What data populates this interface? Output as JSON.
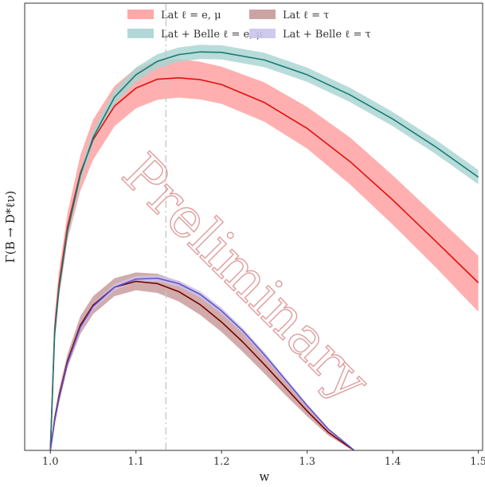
{
  "chart_data": {
    "type": "line",
    "title": "",
    "xlabel": "w",
    "ylabel": "Γ(B → D*ℓν)",
    "xlim": [
      0.97,
      1.505
    ],
    "ylim": [
      0,
      1.0
    ],
    "xticks": [
      1.0,
      1.1,
      1.2,
      1.3,
      1.4,
      1.5
    ],
    "xtick_labels": [
      "1.0",
      "1.1",
      "1.2",
      "1.3",
      "1.4",
      "1.5"
    ],
    "yticks_shown": false,
    "grid": false,
    "legend_position": "top-center",
    "vertical_line": {
      "x": 1.135,
      "style": "dash-dot",
      "color": "#c8c8c8"
    },
    "watermark": "Preliminary",
    "series": [
      {
        "name": "Lat ℓ = e, μ",
        "band_color": "#ff9e9e",
        "line_color": "#e0100c",
        "x": [
          1.0,
          1.005,
          1.01,
          1.02,
          1.035,
          1.05,
          1.075,
          1.1,
          1.125,
          1.15,
          1.175,
          1.2,
          1.25,
          1.3,
          1.35,
          1.4,
          1.45,
          1.5
        ],
        "y": [
          0.0,
          0.27,
          0.37,
          0.5,
          0.62,
          0.695,
          0.77,
          0.81,
          0.83,
          0.833,
          0.829,
          0.818,
          0.778,
          0.72,
          0.646,
          0.56,
          0.468,
          0.375
        ],
        "upper": [
          0.0,
          0.3,
          0.4,
          0.53,
          0.66,
          0.74,
          0.815,
          0.855,
          0.872,
          0.875,
          0.869,
          0.858,
          0.823,
          0.768,
          0.7,
          0.615,
          0.525,
          0.435
        ],
        "lower": [
          0.0,
          0.24,
          0.34,
          0.47,
          0.58,
          0.65,
          0.725,
          0.765,
          0.784,
          0.789,
          0.785,
          0.775,
          0.735,
          0.675,
          0.595,
          0.505,
          0.41,
          0.31
        ]
      },
      {
        "name": "Lat ℓ = τ",
        "band_color": "#c79999",
        "line_color": "#7a0000",
        "x": [
          1.0,
          1.005,
          1.01,
          1.02,
          1.035,
          1.05,
          1.075,
          1.1,
          1.125,
          1.15,
          1.175,
          1.2,
          1.225,
          1.25,
          1.275,
          1.3,
          1.325,
          1.35,
          1.355
        ],
        "y": [
          0.0,
          0.07,
          0.12,
          0.2,
          0.28,
          0.325,
          0.365,
          0.378,
          0.373,
          0.355,
          0.326,
          0.287,
          0.242,
          0.192,
          0.14,
          0.088,
          0.04,
          0.006,
          0.0
        ],
        "upper": [
          0.0,
          0.08,
          0.135,
          0.215,
          0.3,
          0.345,
          0.385,
          0.398,
          0.395,
          0.378,
          0.35,
          0.31,
          0.264,
          0.212,
          0.157,
          0.1,
          0.048,
          0.009,
          0.0
        ],
        "lower": [
          0.0,
          0.06,
          0.105,
          0.185,
          0.26,
          0.305,
          0.345,
          0.358,
          0.352,
          0.333,
          0.303,
          0.265,
          0.22,
          0.172,
          0.123,
          0.076,
          0.033,
          0.004,
          0.0
        ]
      },
      {
        "name": "Lat + Belle ℓ = e, μ",
        "band_color": "#a8d4d1",
        "line_color": "#187a76",
        "x": [
          1.0,
          1.005,
          1.01,
          1.02,
          1.035,
          1.05,
          1.075,
          1.1,
          1.125,
          1.15,
          1.175,
          1.2,
          1.25,
          1.3,
          1.35,
          1.4,
          1.45,
          1.5
        ],
        "y": [
          0.0,
          0.26,
          0.36,
          0.49,
          0.615,
          0.7,
          0.79,
          0.84,
          0.87,
          0.885,
          0.891,
          0.89,
          0.873,
          0.84,
          0.795,
          0.741,
          0.679,
          0.611
        ],
        "upper": [
          0.0,
          0.27,
          0.37,
          0.503,
          0.63,
          0.715,
          0.806,
          0.856,
          0.886,
          0.901,
          0.907,
          0.906,
          0.889,
          0.856,
          0.811,
          0.757,
          0.695,
          0.627
        ],
        "lower": [
          0.0,
          0.25,
          0.35,
          0.477,
          0.6,
          0.685,
          0.774,
          0.824,
          0.854,
          0.869,
          0.875,
          0.874,
          0.857,
          0.824,
          0.779,
          0.725,
          0.663,
          0.595
        ]
      },
      {
        "name": "Lat + Belle ℓ = τ",
        "band_color": "#c9c4ec",
        "line_color": "#6652c9",
        "x": [
          1.0,
          1.005,
          1.01,
          1.02,
          1.035,
          1.05,
          1.075,
          1.1,
          1.125,
          1.15,
          1.175,
          1.2,
          1.225,
          1.25,
          1.275,
          1.3,
          1.325,
          1.35,
          1.355
        ],
        "y": [
          0.0,
          0.065,
          0.115,
          0.195,
          0.275,
          0.322,
          0.365,
          0.383,
          0.385,
          0.373,
          0.349,
          0.312,
          0.267,
          0.214,
          0.157,
          0.1,
          0.047,
          0.008,
          0.0
        ],
        "upper": [
          0.0,
          0.069,
          0.12,
          0.201,
          0.282,
          0.329,
          0.372,
          0.39,
          0.392,
          0.38,
          0.356,
          0.319,
          0.273,
          0.22,
          0.162,
          0.104,
          0.05,
          0.01,
          0.0
        ],
        "lower": [
          0.0,
          0.061,
          0.11,
          0.189,
          0.268,
          0.315,
          0.358,
          0.376,
          0.378,
          0.366,
          0.342,
          0.305,
          0.261,
          0.208,
          0.152,
          0.096,
          0.044,
          0.006,
          0.0
        ]
      }
    ],
    "legend": {
      "entries": [
        {
          "series_index": 0,
          "label": "Lat ℓ = e, μ"
        },
        {
          "series_index": 1,
          "label": "Lat ℓ = τ"
        },
        {
          "series_index": 2,
          "label": "Lat + Belle ℓ = e, μ"
        },
        {
          "series_index": 3,
          "label": "Lat + Belle ℓ = τ"
        }
      ]
    }
  }
}
